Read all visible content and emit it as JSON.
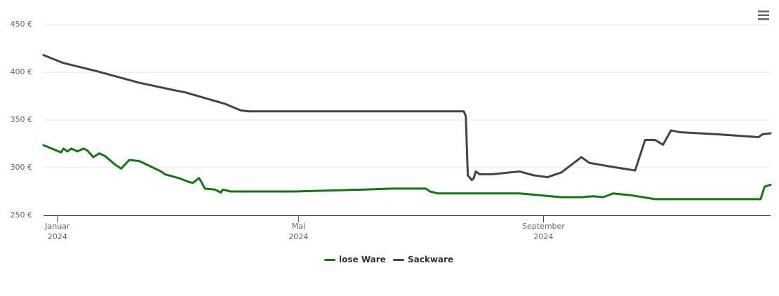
{
  "chart_data": {
    "type": "line",
    "xlim": [
      -7,
      358
    ],
    "xticks": [
      {
        "value": 0,
        "label": "Januar\n2024"
      },
      {
        "value": 121,
        "label": "Mai\n2024"
      },
      {
        "value": 244,
        "label": "September\n2024"
      }
    ],
    "ylim": [
      250,
      450
    ],
    "yticks": [
      {
        "value": 250,
        "label": "250 €"
      },
      {
        "value": 300,
        "label": "300 €"
      },
      {
        "value": 350,
        "label": "350 €"
      },
      {
        "value": 400,
        "label": "400 €"
      },
      {
        "value": 450,
        "label": "450 €"
      }
    ],
    "grid": true,
    "legend": "bottom",
    "series": [
      {
        "name": "lose Ware",
        "color": "#0d7a0d",
        "x": [
          -7,
          1.8,
          3,
          5,
          7,
          10,
          13,
          15,
          18,
          21,
          24,
          29,
          32,
          36,
          41,
          47,
          52,
          54,
          61,
          66,
          68,
          71,
          72,
          74,
          79,
          82,
          83,
          85,
          87,
          119,
          154,
          168,
          185,
          187,
          191,
          232,
          253,
          263,
          269,
          274,
          279,
          288,
          300,
          323,
          353,
          355,
          358
        ],
        "values": [
          323.5,
          316,
          320,
          317,
          320,
          317,
          320,
          318,
          311,
          315,
          312,
          303,
          299,
          308,
          307,
          301,
          296,
          293,
          289,
          285,
          284,
          289,
          286,
          278,
          277,
          274,
          277,
          276,
          275,
          275,
          277,
          278,
          278,
          275,
          273,
          273,
          269,
          269,
          270,
          269,
          273,
          271,
          267,
          267,
          267,
          280,
          282
        ]
      },
      {
        "name": "Sackware",
        "color": "#434348",
        "x": [
          -7,
          2.5,
          20,
          41,
          59,
          64,
          84,
          92,
          96,
          204,
          205,
          206,
          208,
          209,
          210,
          212,
          218,
          232,
          239,
          246,
          253,
          258,
          263,
          267,
          278,
          290,
          295,
          300,
          304,
          308,
          313,
          331,
          352,
          354,
          358
        ],
        "values": [
          418,
          410,
          401,
          389,
          381,
          379,
          367,
          360,
          359,
          359,
          354,
          292,
          287,
          289,
          296,
          293,
          293,
          296,
          292,
          290,
          295,
          303,
          311,
          305,
          301,
          297,
          329,
          329,
          324,
          339,
          337,
          335,
          332,
          335,
          336
        ]
      }
    ]
  }
}
